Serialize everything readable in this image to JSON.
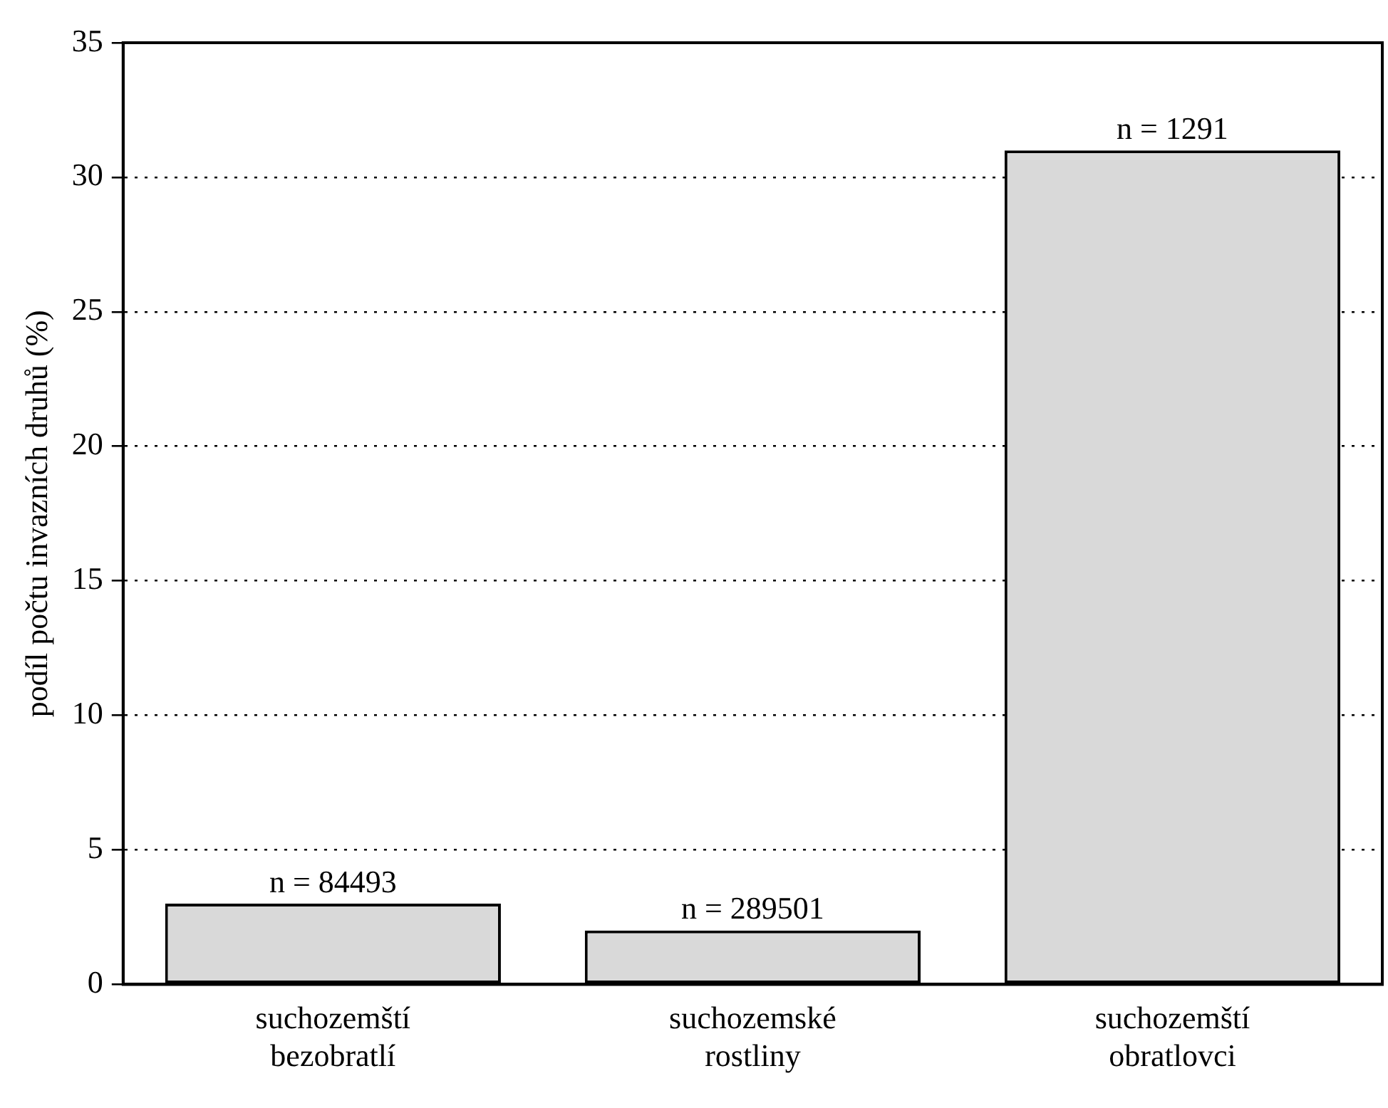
{
  "chart_data": {
    "type": "bar",
    "categories": [
      "suchozemští bezobratlí",
      "suchozemské rostliny",
      "suchozemští obratlovci"
    ],
    "values": [
      3,
      2,
      31
    ],
    "color": "#d9d9d9",
    "ylabel": "podíl počtu invazních druhů (%)",
    "ylim": [
      0,
      35
    ],
    "yticks": [
      0,
      5,
      10,
      15,
      20,
      25,
      30,
      35
    ],
    "grid": "y",
    "line_style": "dotted",
    "legend": false,
    "annotations": [
      {
        "text": "n = 84493",
        "x": "suchozemští bezobratlí",
        "y": 3
      },
      {
        "text": "n = 289501",
        "x": "suchozemské rostliny",
        "y": 2
      },
      {
        "text": "n = 1291",
        "x": "suchozemští obratlovci",
        "y": 31
      }
    ]
  }
}
